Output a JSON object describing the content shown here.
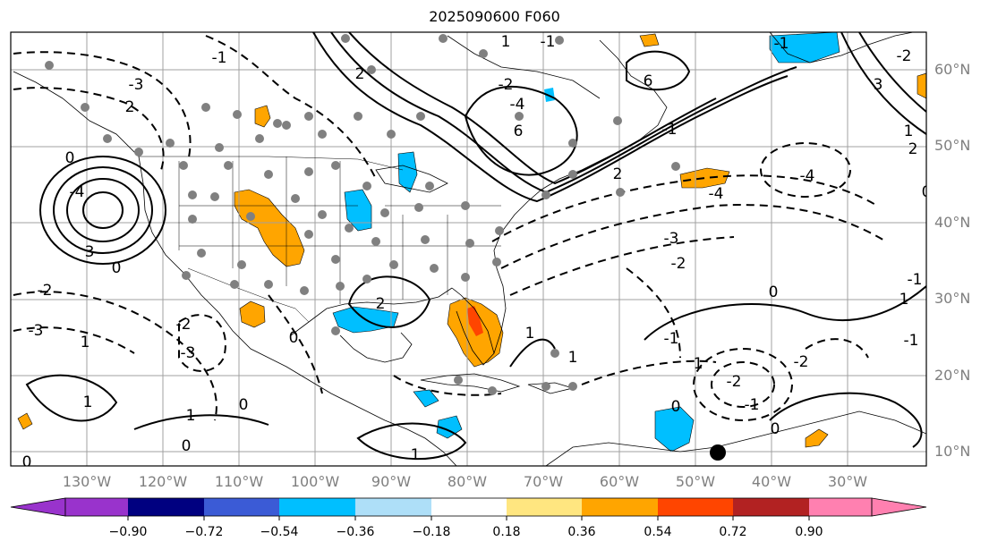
{
  "title": "2025090600 F060",
  "map": {
    "lon_range": [
      -140,
      -18
    ],
    "lat_range": [
      7,
      65
    ],
    "lat_labels": [
      "60°N",
      "50°N",
      "40°N",
      "30°N",
      "20°N",
      "10°N"
    ],
    "lon_labels": [
      "130°W",
      "120°W",
      "110°W",
      "100°W",
      "90°W",
      "80°W",
      "70°W",
      "60°W",
      "50°W",
      "40°W",
      "30°W"
    ],
    "contour_labels": [
      "-1",
      "2",
      "1",
      "-1",
      "6",
      "-1",
      "6",
      "-4",
      "3",
      "-2",
      "-2",
      "1",
      "2",
      "-4",
      "-3",
      "0",
      "3",
      "-4",
      "-3",
      "-2",
      "-1",
      "-2",
      "-1",
      "1",
      "0",
      "-4",
      "-2",
      "0",
      "2",
      "0",
      "-3",
      "-3",
      "-2",
      "0",
      "1",
      "1",
      "-1",
      "-2",
      "0",
      "1",
      "1",
      "0",
      "0",
      "1",
      "1",
      "-1",
      "-1",
      "2",
      "1",
      "0",
      "2",
      "0"
    ],
    "gridlines": true,
    "markers": "gray dots (stations), one black dot near 48°W 10°N"
  },
  "colorbar": {
    "levels": [
      "−0.90",
      "−0.72",
      "−0.54",
      "−0.36",
      "−0.18",
      "0.18",
      "0.36",
      "0.54",
      "0.72",
      "0.90"
    ],
    "colors": [
      "#9933cc",
      "#000080",
      "#3b5bd6",
      "#00bfff",
      "#aedff8",
      "#ffffff",
      "#ffe680",
      "#ffa500",
      "#ff4500",
      "#b22222",
      "#ff80b0"
    ]
  },
  "colors": {
    "positive_shade": "#ffa500",
    "negative_shade": "#00bfff",
    "strong_positive": "#ff4500",
    "station_dot": "#808080"
  }
}
